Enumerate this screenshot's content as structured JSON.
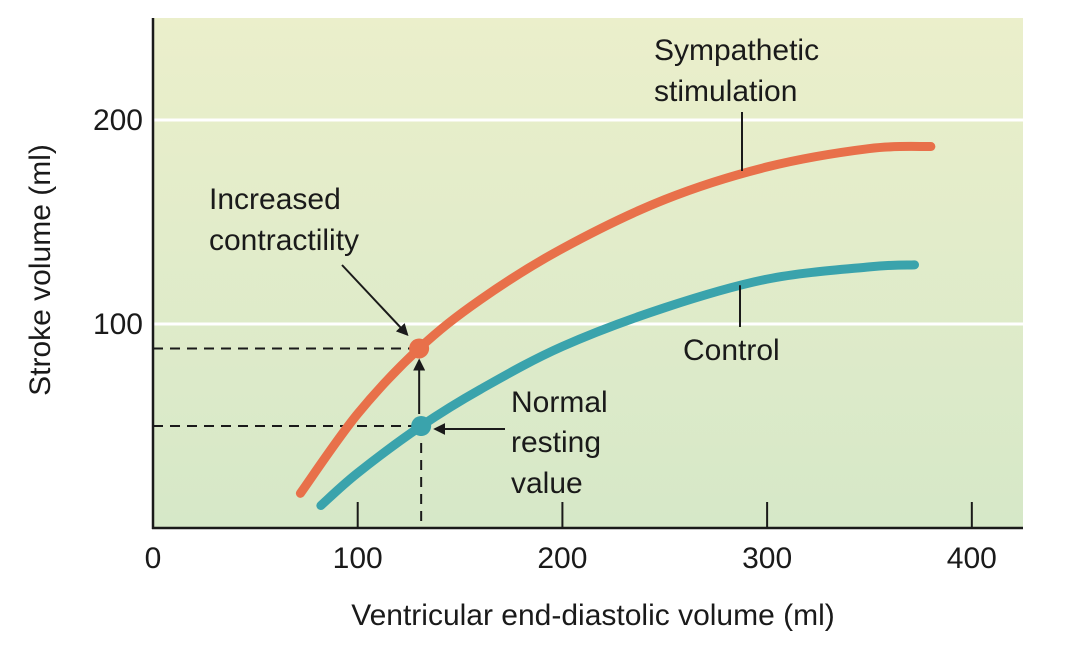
{
  "chart_data": {
    "type": "line",
    "xlabel": "Ventricular end-diastolic volume (ml)",
    "ylabel": "Stroke volume (ml)",
    "xlim": [
      0,
      425
    ],
    "ylim": [
      0,
      250
    ],
    "x_ticks": [
      0,
      100,
      200,
      300,
      400
    ],
    "x_tick_labels": [
      "0",
      "100",
      "200",
      "300",
      "400"
    ],
    "y_ticks": [
      100,
      200
    ],
    "y_tick_labels": [
      "100",
      "200"
    ],
    "grid": "horizontal white lines at 100 and 200",
    "series": [
      {
        "name": "Sympathetic stimulation",
        "color": "#e8704a",
        "x": [
          72,
          100,
          130,
          160,
          200,
          250,
          300,
          350,
          380
        ],
        "y": [
          17,
          56,
          88,
          112,
          137,
          161,
          177,
          186,
          187
        ]
      },
      {
        "name": "Control",
        "color": "#3aa3ac",
        "x": [
          82,
          100,
          131,
          160,
          200,
          250,
          300,
          350,
          372
        ],
        "y": [
          11,
          27,
          50,
          68,
          89,
          108,
          122,
          128,
          129
        ]
      }
    ],
    "points": [
      {
        "name": "Increased contractility",
        "x": 130,
        "y": 88,
        "color": "#e8704a"
      },
      {
        "name": "Normal resting value",
        "x": 131,
        "y": 50,
        "color": "#3aa3ac"
      }
    ],
    "annotations": {
      "sympathetic": [
        "Sympathetic",
        "stimulation"
      ],
      "control": "Control",
      "increased": [
        "Increased",
        "contractility"
      ],
      "normal": [
        "Normal",
        "resting",
        "value"
      ]
    },
    "colors": {
      "background_top": "#ebefcb",
      "background_bottom": "#d6e8c8",
      "grid": "#ffffff",
      "axis": "#1a1a1a"
    }
  }
}
